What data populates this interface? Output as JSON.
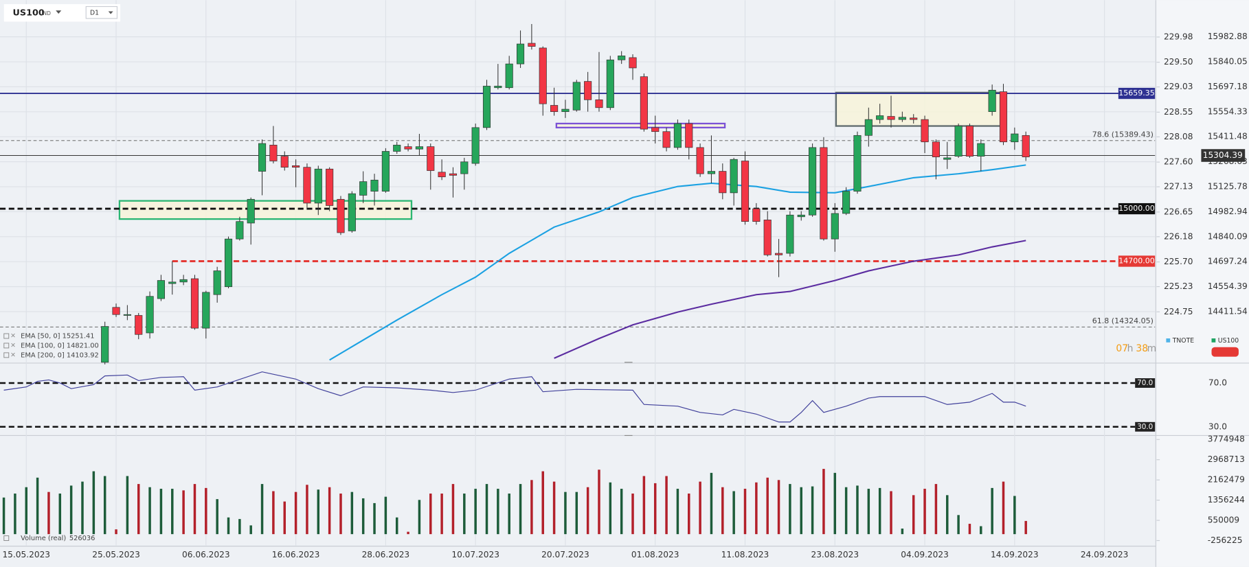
{
  "header": {
    "symbol": "US100",
    "symbol_type": "IND",
    "timeframe": "D1"
  },
  "legend": {
    "items": [
      {
        "name": "TNOTE",
        "color": "#4fb3e8"
      },
      {
        "name": "US100",
        "color": "#1fa463"
      }
    ]
  },
  "countdown": {
    "hours": "07",
    "hours_unit": "h",
    "minutes": "38",
    "minutes_unit": "m"
  },
  "chart_data": [
    {
      "type": "candlestick",
      "x": [
        7,
        8,
        9,
        10,
        11,
        12,
        13,
        14,
        15,
        16,
        17,
        18,
        19,
        20,
        21,
        22,
        23,
        24,
        25,
        26,
        27,
        28,
        29,
        30,
        31,
        32,
        33,
        34,
        35,
        36,
        37,
        38,
        39,
        40,
        41,
        42,
        43,
        44,
        45,
        46,
        47,
        48,
        49,
        50,
        51,
        52,
        53,
        54,
        55,
        56,
        57,
        58,
        59,
        60,
        61,
        62,
        63,
        64,
        65,
        66,
        67,
        68,
        69,
        70,
        71,
        72,
        73,
        74,
        75,
        76,
        77,
        78,
        79,
        80,
        81,
        82,
        83,
        84,
        85,
        86,
        87,
        88,
        89
      ],
      "open": [
        14122,
        14436,
        14390,
        14390,
        14290,
        14486,
        14572,
        14581,
        14600,
        14317,
        14509,
        14554,
        14827,
        14918,
        15214,
        15364,
        15300,
        15246,
        15237,
        15032,
        15227,
        15054,
        14873,
        15077,
        15100,
        15100,
        15328,
        15355,
        15341,
        15355,
        15209,
        15200,
        15200,
        15259,
        15464,
        15692,
        15692,
        15828,
        15946,
        15919,
        15591,
        15555,
        15564,
        15728,
        15623,
        15578,
        15851,
        15864,
        15755,
        15464,
        15441,
        15350,
        15487,
        15350,
        15200,
        15214,
        15091,
        15273,
        15000,
        14936,
        14745,
        14745,
        14954,
        14964,
        15350,
        14827,
        14973,
        15100,
        15419,
        15510,
        15528,
        15510,
        15519,
        15510,
        15382,
        15282,
        15300,
        15473,
        15300,
        15555,
        15669,
        15382,
        15419
      ],
      "high": [
        14354,
        14458,
        14449,
        14404,
        14527,
        14622,
        14700,
        14622,
        14622,
        14531,
        14668,
        14841,
        14954,
        15064,
        15396,
        15473,
        15328,
        15282,
        15259,
        15246,
        15237,
        15073,
        15100,
        15214,
        15200,
        15346,
        15382,
        15373,
        15428,
        15373,
        15282,
        15237,
        15291,
        15487,
        15737,
        15828,
        15874,
        16019,
        16056,
        15928,
        15692,
        15623,
        15737,
        15782,
        15896,
        15874,
        15901,
        15883,
        15773,
        15532,
        15464,
        15510,
        15510,
        15373,
        15419,
        15259,
        15291,
        15328,
        15032,
        14986,
        14827,
        14986,
        14986,
        15373,
        15409,
        15032,
        15123,
        15441,
        15578,
        15600,
        15646,
        15555,
        15541,
        15532,
        15396,
        15382,
        15487,
        15487,
        15396,
        15710,
        15714,
        15464,
        15441
      ],
      "low": [
        14110,
        14381,
        14363,
        14254,
        14258,
        14472,
        14509,
        14563,
        14308,
        14258,
        14463,
        14545,
        14818,
        14795,
        15077,
        15259,
        15218,
        15123,
        15000,
        14964,
        14986,
        14850,
        14863,
        15032,
        15018,
        15091,
        15314,
        15328,
        15305,
        15109,
        15164,
        15064,
        15109,
        15246,
        15450,
        15682,
        15682,
        15805,
        15910,
        15532,
        15532,
        15519,
        15555,
        15555,
        15555,
        15564,
        15828,
        15737,
        15441,
        15373,
        15328,
        15337,
        15282,
        15182,
        15146,
        15054,
        15018,
        14909,
        14909,
        14727,
        14609,
        14727,
        14932,
        14954,
        14818,
        14754,
        14964,
        15086,
        15355,
        15487,
        15464,
        15496,
        15487,
        15318,
        15168,
        15227,
        15291,
        15291,
        15214,
        15532,
        15364,
        15337,
        15273
      ],
      "close": [
        14327,
        14395,
        14395,
        14281,
        14499,
        14590,
        14581,
        14595,
        14317,
        14522,
        14645,
        14827,
        14927,
        15054,
        15373,
        15273,
        15237,
        15237,
        15032,
        15227,
        15018,
        14863,
        15086,
        15155,
        15164,
        15328,
        15364,
        15341,
        15355,
        15218,
        15182,
        15191,
        15268,
        15464,
        15701,
        15701,
        15828,
        15942,
        15928,
        15600,
        15555,
        15569,
        15723,
        15623,
        15578,
        15851,
        15874,
        15805,
        15455,
        15441,
        15350,
        15487,
        15350,
        15200,
        15214,
        15091,
        15282,
        14927,
        14927,
        14736,
        14736,
        14964,
        14964,
        15350,
        14827,
        14973,
        15100,
        15419,
        15510,
        15532,
        15510,
        15523,
        15510,
        15382,
        15296,
        15291,
        15473,
        15300,
        15373,
        15678,
        15382,
        15428,
        15296
      ],
      "up_color": "#26a65b",
      "down_color": "#f23645",
      "xlim": [
        -2.34,
        100.5
      ],
      "xticks": [
        {
          "value": 0,
          "label": "15.05.2023"
        },
        {
          "value": 8,
          "label": "25.05.2023"
        },
        {
          "value": 16,
          "label": "06.06.2023"
        },
        {
          "value": 24,
          "label": "16.06.2023"
        },
        {
          "value": 32,
          "label": "28.06.2023"
        },
        {
          "value": 40,
          "label": "10.07.2023"
        },
        {
          "value": 48,
          "label": "20.07.2023"
        },
        {
          "value": 56,
          "label": "01.08.2023"
        },
        {
          "value": 64,
          "label": "11.08.2023"
        },
        {
          "value": 72,
          "label": "23.08.2023"
        },
        {
          "value": 80,
          "label": "04.09.2023"
        },
        {
          "value": 88,
          "label": "14.09.2023"
        },
        {
          "value": 96,
          "label": "24.09.2023"
        }
      ],
      "ylim": [
        14122,
        16156
      ],
      "yticks": [
        15982.88,
        15840.05,
        15697.18,
        15554.33,
        15411.48,
        15268.63,
        15125.78,
        14982.94,
        14840.09,
        14697.24,
        14554.39,
        14411.54
      ],
      "y2lim": [
        223.79,
        230.56
      ],
      "y2ticks": [
        229.98,
        {
          "value": 229.5,
          "label": "229.50"
        },
        229.03,
        228.55,
        228.08,
        {
          "value": 227.6,
          "label": "227.60"
        },
        227.13,
        226.65,
        226.18,
        {
          "value": 225.7,
          "label": "225.70"
        },
        225.23,
        224.75
      ],
      "grid": true,
      "indicator_legend": [
        "EMA [50, 0] 15251.41",
        "EMA [100, 0] 14821.00",
        "EMA [200, 0] 14103.92"
      ],
      "lines": [
        {
          "color": "#1ba1e2",
          "x": [
            27,
            33,
            37,
            40,
            43,
            47,
            51,
            54,
            58,
            61,
            65,
            68,
            72,
            75,
            79,
            83,
            86,
            89
          ],
          "values": [
            14135,
            14363,
            14509,
            14609,
            14745,
            14895,
            14982,
            15064,
            15127,
            15146,
            15127,
            15095,
            15091,
            15127,
            15177,
            15200,
            15223,
            15250
          ]
        },
        {
          "color": "#5b2ca0",
          "x": [
            47,
            51,
            54,
            58,
            61,
            65,
            68,
            72,
            75,
            79,
            83,
            86,
            89
          ],
          "values": [
            14145,
            14258,
            14336,
            14409,
            14454,
            14509,
            14527,
            14590,
            14645,
            14700,
            14736,
            14782,
            14818
          ]
        }
      ],
      "levels": [
        {
          "value": 15659.35,
          "label": "15659.35",
          "color": "#2e3192",
          "dash": false
        },
        {
          "value": 15000,
          "label": "15000.00",
          "color": "#111111",
          "dash": true
        },
        {
          "value": 14700,
          "label": "14700.00",
          "color": "#e53935",
          "dash": true,
          "x_start": 13
        }
      ],
      "fib": [
        {
          "value": 15389.43,
          "label": "78.6 (15389.43)"
        },
        {
          "value": 14324.05,
          "label": "61.8 (14324.05)"
        }
      ],
      "last_price": {
        "value": 15304.39
      },
      "zones": [
        {
          "x": [
            8.3,
            34.3
          ],
          "y": [
            14941,
            15045
          ],
          "color": "#2bb673"
        },
        {
          "x": [
            47.2,
            62.2
          ],
          "y": [
            15464,
            15487
          ],
          "color": "#7b52d6"
        },
        {
          "x": [
            72.1,
            87.2
          ],
          "y": [
            15473,
            15664
          ],
          "color": "#5f6b6d"
        }
      ]
    },
    {
      "type": "line",
      "color": "#3f3f9a",
      "x": [
        -2,
        0,
        1,
        2,
        3,
        4,
        6,
        7,
        9,
        10,
        12,
        14,
        15,
        17,
        21,
        24,
        26,
        28,
        30,
        33,
        36,
        38,
        40,
        43,
        45,
        46,
        49,
        54,
        55,
        58,
        60,
        62,
        63,
        65,
        67,
        68,
        69,
        70,
        71,
        73,
        75,
        76,
        80,
        82,
        84,
        86,
        87,
        88,
        89
      ],
      "values": [
        63.5,
        66.4,
        71.5,
        72.9,
        70,
        64.9,
        68.5,
        76.5,
        77.3,
        72.2,
        75.1,
        75.8,
        63.5,
        66.4,
        80.2,
        73.6,
        64.9,
        58.4,
        66.4,
        65.6,
        63.5,
        61.3,
        63.5,
        73.6,
        75.8,
        62,
        64.2,
        63.5,
        50.4,
        48.9,
        43.1,
        40.9,
        46,
        41.6,
        34.4,
        34.4,
        43.1,
        54,
        43.1,
        48.9,
        56.2,
        57.6,
        57.6,
        50.4,
        52.5,
        60.5,
        52.5,
        52.5,
        48.9
      ],
      "ylim": [
        23.5,
        85.3
      ],
      "yticks": [
        {
          "value": 70,
          "label": "70.0"
        },
        {
          "value": 30,
          "label": "30.0"
        }
      ]
    },
    {
      "type": "bar",
      "name": "Volume (real)",
      "x": [
        -2,
        -1,
        0,
        1,
        2,
        3,
        4,
        5,
        6,
        7,
        8,
        9,
        10,
        11,
        12,
        13,
        14,
        15,
        16,
        17,
        18,
        19,
        20,
        21,
        22,
        23,
        24,
        25,
        26,
        27,
        28,
        29,
        30,
        31,
        32,
        33,
        34,
        35,
        36,
        37,
        38,
        39,
        40,
        41,
        42,
        43,
        44,
        45,
        46,
        47,
        48,
        49,
        50,
        51,
        52,
        53,
        54,
        55,
        56,
        57,
        58,
        59,
        60,
        61,
        62,
        63,
        64,
        65,
        66,
        67,
        68,
        69,
        70,
        71,
        72,
        73,
        74,
        75,
        76,
        77,
        78,
        79,
        80,
        81,
        82,
        83,
        84,
        85,
        86,
        87,
        88,
        89
      ],
      "values": [
        1460132,
        1618842,
        1872778,
        2253682,
        1682326,
        1618842,
        1936262,
        2094972,
        2507618,
        2317166,
        190452,
        2317166,
        1999746,
        1872778,
        1809294,
        1809294,
        1745810,
        1999746,
        1841036,
        1396648,
        666582,
        603098,
        349162,
        1999746,
        1714068,
        1301422,
        1682326,
        1968004,
        1777552,
        1872778,
        1618842,
        1682326,
        1428390,
        1237938,
        1491874,
        666582,
        95226,
        1364906,
        1618842,
        1618842,
        1999746,
        1618842,
        1809294,
        1999746,
        1809294,
        1618842,
        1999746,
        2158456,
        2507618,
        2094972,
        1682326,
        1682326,
        1872778,
        2571102,
        2063230,
        1809294,
        1618842,
        2317166,
        2031488,
        2317166,
        1809294,
        1618842,
        2094972,
        2444134,
        1872778,
        1714068,
        1809294,
        2063230,
        2253682,
        2158456,
        1999746,
        1872778,
        1904520,
        2602844,
        2444134,
        1872778,
        1936262,
        1809294,
        1841036,
        1714068,
        222194,
        1555358,
        1809294,
        1999746,
        1555358,
        761808,
        412646,
        317420,
        1841036,
        2094972,
        1523616,
        526036
      ],
      "colors": [
        "#1d5c3a",
        "#1d5c3a",
        "#1d5c3a",
        "#1d5c3a",
        "#b3202a",
        "#1d5c3a",
        "#1d5c3a",
        "#1d5c3a",
        "#1d5c3a",
        "#1d5c3a",
        "#b3202a",
        "#1d5c3a",
        "#b3202a",
        "#1d5c3a",
        "#1d5c3a",
        "#1d5c3a",
        "#b3202a",
        "#b3202a",
        "#b3202a",
        "#1d5c3a",
        "#1d5c3a",
        "#1d5c3a",
        "#1d5c3a",
        "#1d5c3a",
        "#b3202a",
        "#b3202a",
        "#b3202a",
        "#b3202a",
        "#1d5c3a",
        "#b3202a",
        "#b3202a",
        "#1d5c3a",
        "#1d5c3a",
        "#1d5c3a",
        "#1d5c3a",
        "#1d5c3a",
        "#b3202a",
        "#1d5c3a",
        "#b3202a",
        "#b3202a",
        "#b3202a",
        "#1d5c3a",
        "#1d5c3a",
        "#1d5c3a",
        "#1d5c3a",
        "#1d5c3a",
        "#1d5c3a",
        "#b3202a",
        "#b3202a",
        "#b3202a",
        "#1d5c3a",
        "#1d5c3a",
        "#b3202a",
        "#b3202a",
        "#1d5c3a",
        "#1d5c3a",
        "#b3202a",
        "#b3202a",
        "#b3202a",
        "#b3202a",
        "#1d5c3a",
        "#b3202a",
        "#b3202a",
        "#1d5c3a",
        "#b3202a",
        "#1d5c3a",
        "#b3202a",
        "#b3202a",
        "#b3202a",
        "#b3202a",
        "#1d5c3a",
        "#1d5c3a",
        "#1d5c3a",
        "#b3202a",
        "#1d5c3a",
        "#1d5c3a",
        "#1d5c3a",
        "#1d5c3a",
        "#1d5c3a",
        "#b3202a",
        "#1d5c3a",
        "#b3202a",
        "#b3202a",
        "#b3202a",
        "#1d5c3a",
        "#1d5c3a",
        "#b3202a",
        "#1d5c3a",
        "#1d5c3a",
        "#b3202a",
        "#1d5c3a",
        "#b3202a"
      ],
      "ylim": [
        -446677,
        3901916
      ],
      "yticks": [
        3774948,
        2968713,
        2162479,
        1356244,
        550009,
        -256225
      ]
    }
  ]
}
